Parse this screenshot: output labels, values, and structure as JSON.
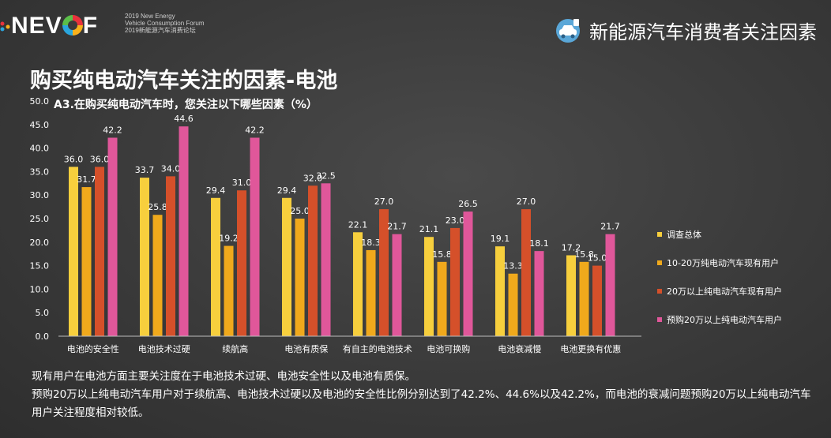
{
  "header": {
    "brand": "NEVOF",
    "sub_line1": "2019 New Energy",
    "sub_line2": "Vehicle Consumption Forum",
    "sub_line3": "2019新能源汽车消费论坛",
    "right_title": "新能源汽车消费者关注因素",
    "right_icon": "car-icon"
  },
  "page": {
    "title": "购买纯电动汽车关注的因素-电池"
  },
  "colors": {
    "series": [
      "#f7cf3d",
      "#f0a91c",
      "#d5502a",
      "#e0579a"
    ]
  },
  "chart_data": {
    "type": "bar",
    "title": "A3.在购买纯电动汽车时，您关注以下哪些因素（%）",
    "ylim": [
      0,
      50
    ],
    "yticks": [
      "0.0",
      "5.0",
      "10.0",
      "15.0",
      "20.0",
      "25.0",
      "30.0",
      "35.0",
      "40.0",
      "45.0",
      "50.0"
    ],
    "grid": false,
    "legend_position": "right",
    "categories": [
      "电池的安全性",
      "电池技术过硬",
      "续航高",
      "电池有质保",
      "有自主的电池技术",
      "电池可换购",
      "电池衰减慢",
      "电池更换有优惠"
    ],
    "series": [
      {
        "name": "调查总体",
        "values": [
          36.0,
          33.7,
          29.4,
          29.4,
          22.1,
          21.1,
          19.1,
          17.2
        ]
      },
      {
        "name": "10-20万纯电动汽车现有用户",
        "values": [
          31.7,
          25.8,
          19.2,
          25.0,
          18.3,
          15.8,
          13.3,
          15.8
        ]
      },
      {
        "name": "20万以上纯电动汽车现有用户",
        "values": [
          36.0,
          34.0,
          31.0,
          32.0,
          27.0,
          23.0,
          27.0,
          15.0
        ]
      },
      {
        "name": "预购20万以上纯电动汽车用户",
        "values": [
          42.2,
          44.6,
          42.2,
          32.5,
          21.7,
          26.5,
          18.1,
          21.7
        ]
      }
    ]
  },
  "notes": {
    "line1": "现有用户在电池方面主要关注度在于电池技术过硬、电池安全性以及电池有质保。",
    "line2": "预购20万以上纯电动汽车用户对于续航高、电池技术过硬以及电池的安全性比例分别达到了42.2%、44.6%以及42.2%，而电池的衰减问题预购20万以上纯电动汽车用户关注程度相对较低。"
  }
}
